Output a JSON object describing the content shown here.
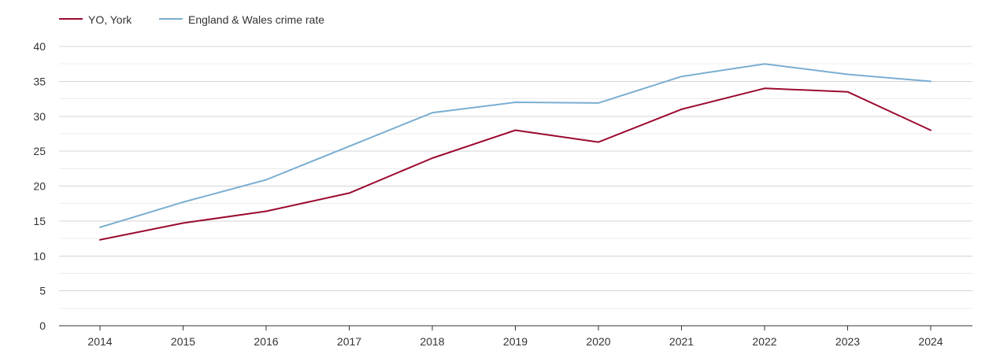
{
  "chart_data": {
    "type": "line",
    "x": [
      "2014",
      "2015",
      "2016",
      "2017",
      "2018",
      "2019",
      "2020",
      "2021",
      "2022",
      "2023",
      "2024"
    ],
    "series": [
      {
        "name": "YO, York",
        "color": "#9b0a2f",
        "values": [
          12.3,
          14.7,
          16.4,
          19.0,
          24.0,
          28.0,
          26.3,
          31.0,
          34.0,
          33.5,
          28.0
        ]
      },
      {
        "name": "England & Wales crime rate",
        "color": "#7aaed1",
        "values": [
          14.1,
          17.7,
          20.9,
          25.7,
          30.5,
          32.0,
          31.9,
          35.7,
          37.5,
          36.0,
          35.0
        ]
      }
    ],
    "yticks": [
      0,
      5,
      10,
      15,
      20,
      25,
      30,
      35,
      40
    ],
    "ylim": [
      0,
      40
    ],
    "grid": true,
    "minor_grid": true,
    "legend": "top-left",
    "title": "",
    "xlabel": "",
    "ylabel": ""
  }
}
